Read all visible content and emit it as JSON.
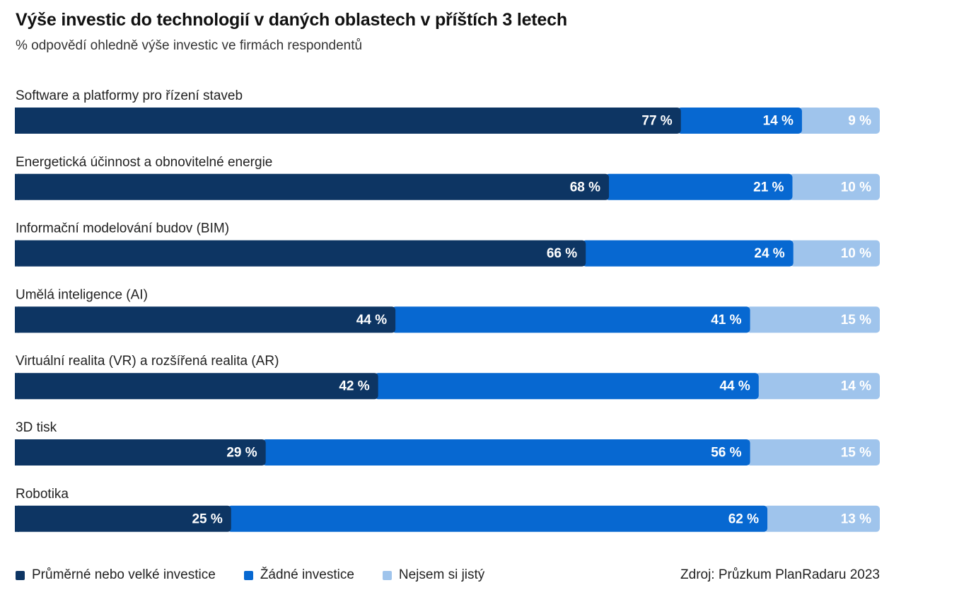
{
  "title": "Výše investic do technologií v daných oblastech v příštích 3 letech",
  "subtitle": "% odpovědí ohledně výše investic ve firmách respondentů",
  "source": "Zdroj: Průzkum PlanRadaru 2023",
  "colors": {
    "series0": "#0d3563",
    "series1": "#0768d1",
    "series2": "#9fc4ec"
  },
  "chart_data": {
    "type": "bar",
    "orientation": "horizontal",
    "stacked": true,
    "unit": "%",
    "categories": [
      "Software a platformy pro řízení staveb",
      "Energetická účinnost a obnovitelné energie",
      "Informační modelování budov (BIM)",
      "Umělá inteligence (AI)",
      "Virtuální realita (VR) a rozšířená realita (AR)",
      "3D tisk",
      "Robotika"
    ],
    "series": [
      {
        "name": "Průměrné nebo velké investice",
        "values": [
          77,
          68,
          66,
          44,
          42,
          29,
          25
        ]
      },
      {
        "name": "Žádné investice",
        "values": [
          14,
          21,
          24,
          41,
          44,
          56,
          62
        ]
      },
      {
        "name": "Nejsem si jistý",
        "values": [
          9,
          10,
          10,
          15,
          14,
          15,
          13
        ]
      }
    ],
    "legend_position": "bottom-left",
    "grid": false
  }
}
